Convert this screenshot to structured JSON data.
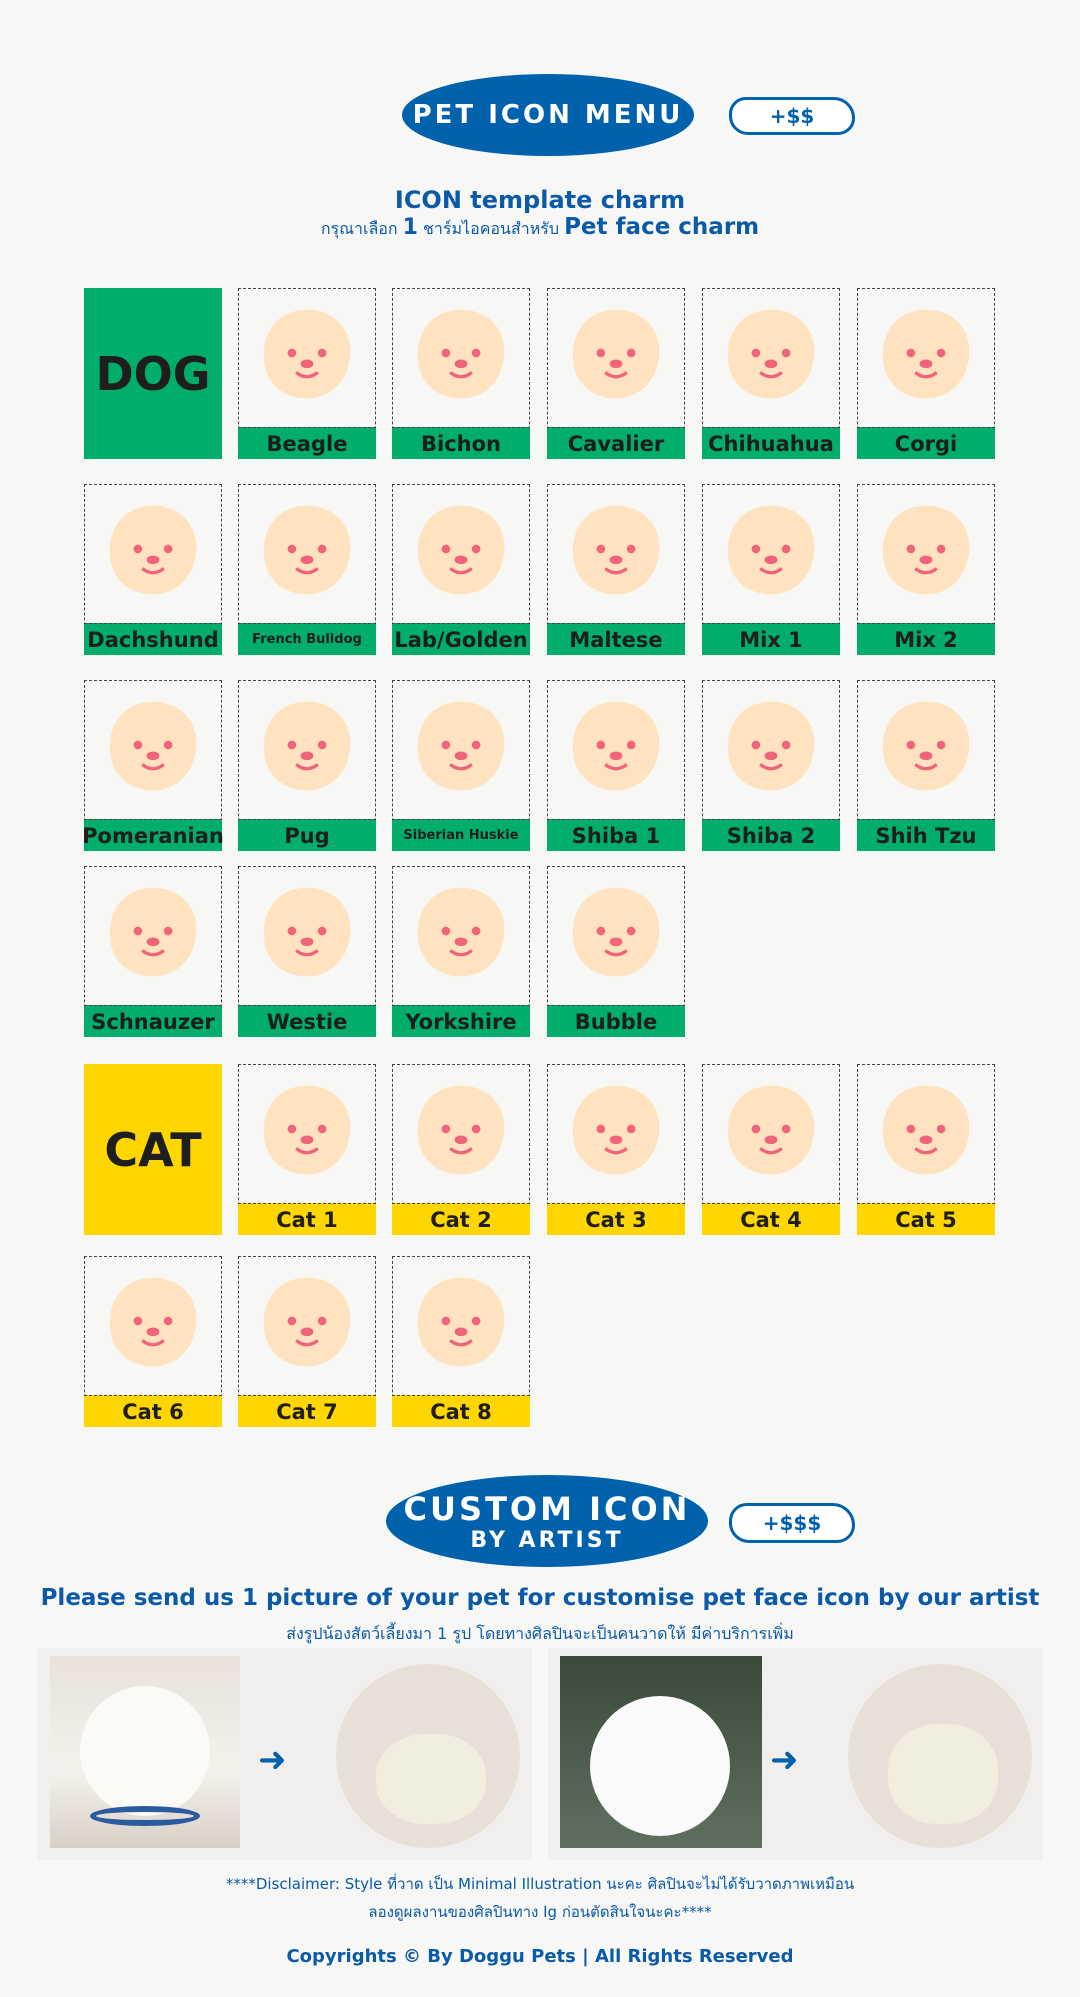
{
  "header": {
    "title": "PET ICON MENU",
    "price": "+$$"
  },
  "intro": {
    "title": "ICON template charm",
    "subtitle_thai_a": "กรุณาเลือก",
    "subtitle_num": "1",
    "subtitle_thai_b": "ชาร์มไอคอนสำหรับ",
    "subtitle_en": "Pet face charm"
  },
  "colors": {
    "brand_blue": "#0062ad",
    "dog_green": "#00ad6a",
    "cat_yellow": "#ffd600",
    "icon_cream": "#ffe3c0",
    "icon_pink": "#f0647a"
  },
  "dog": {
    "label": "DOG",
    "breeds": [
      "Beagle",
      "Bichon",
      "Cavalier",
      "Chihuahua",
      "Corgi",
      "Dachshund",
      "French Bulldog",
      "Lab/Golden",
      "Maltese",
      "Mix 1",
      "Mix 2",
      "Pomeranian",
      "Pug",
      "Siberian Huskie",
      "Shiba 1",
      "Shiba 2",
      "Shih Tzu",
      "Schnauzer",
      "Westie",
      "Yorkshire",
      "Bubble"
    ]
  },
  "cat": {
    "label": "CAT",
    "breeds": [
      "Cat 1",
      "Cat 2",
      "Cat 3",
      "Cat 4",
      "Cat 5",
      "Cat 6",
      "Cat 7",
      "Cat 8"
    ]
  },
  "custom": {
    "title": "CUSTOM ICON",
    "subtitle": "BY ARTIST",
    "price": "+$$$",
    "instruction": "Please send us 1 picture of your pet for customise pet face icon by our artist",
    "instruction_thai": "ส่งรูปน้องสัตว์เลี้ยงมา 1 รูป โดยทางศิลปินจะเป็นคนวาดให้ มีค่าบริการเพิ่ม"
  },
  "disclaimer": {
    "line1": "****Disclaimer: Style ที่วาด เป็น Minimal Illustration นะคะ ศิลปินจะไม่ได้รับวาดภาพเหมือน",
    "line2": "ลองดูผลงานของศิลปินทาง Ig ก่อนตัดสินใจนะคะ****"
  },
  "footer": {
    "copyright": "Copyrights © By Doggu Pets | All Rights Reserved"
  }
}
